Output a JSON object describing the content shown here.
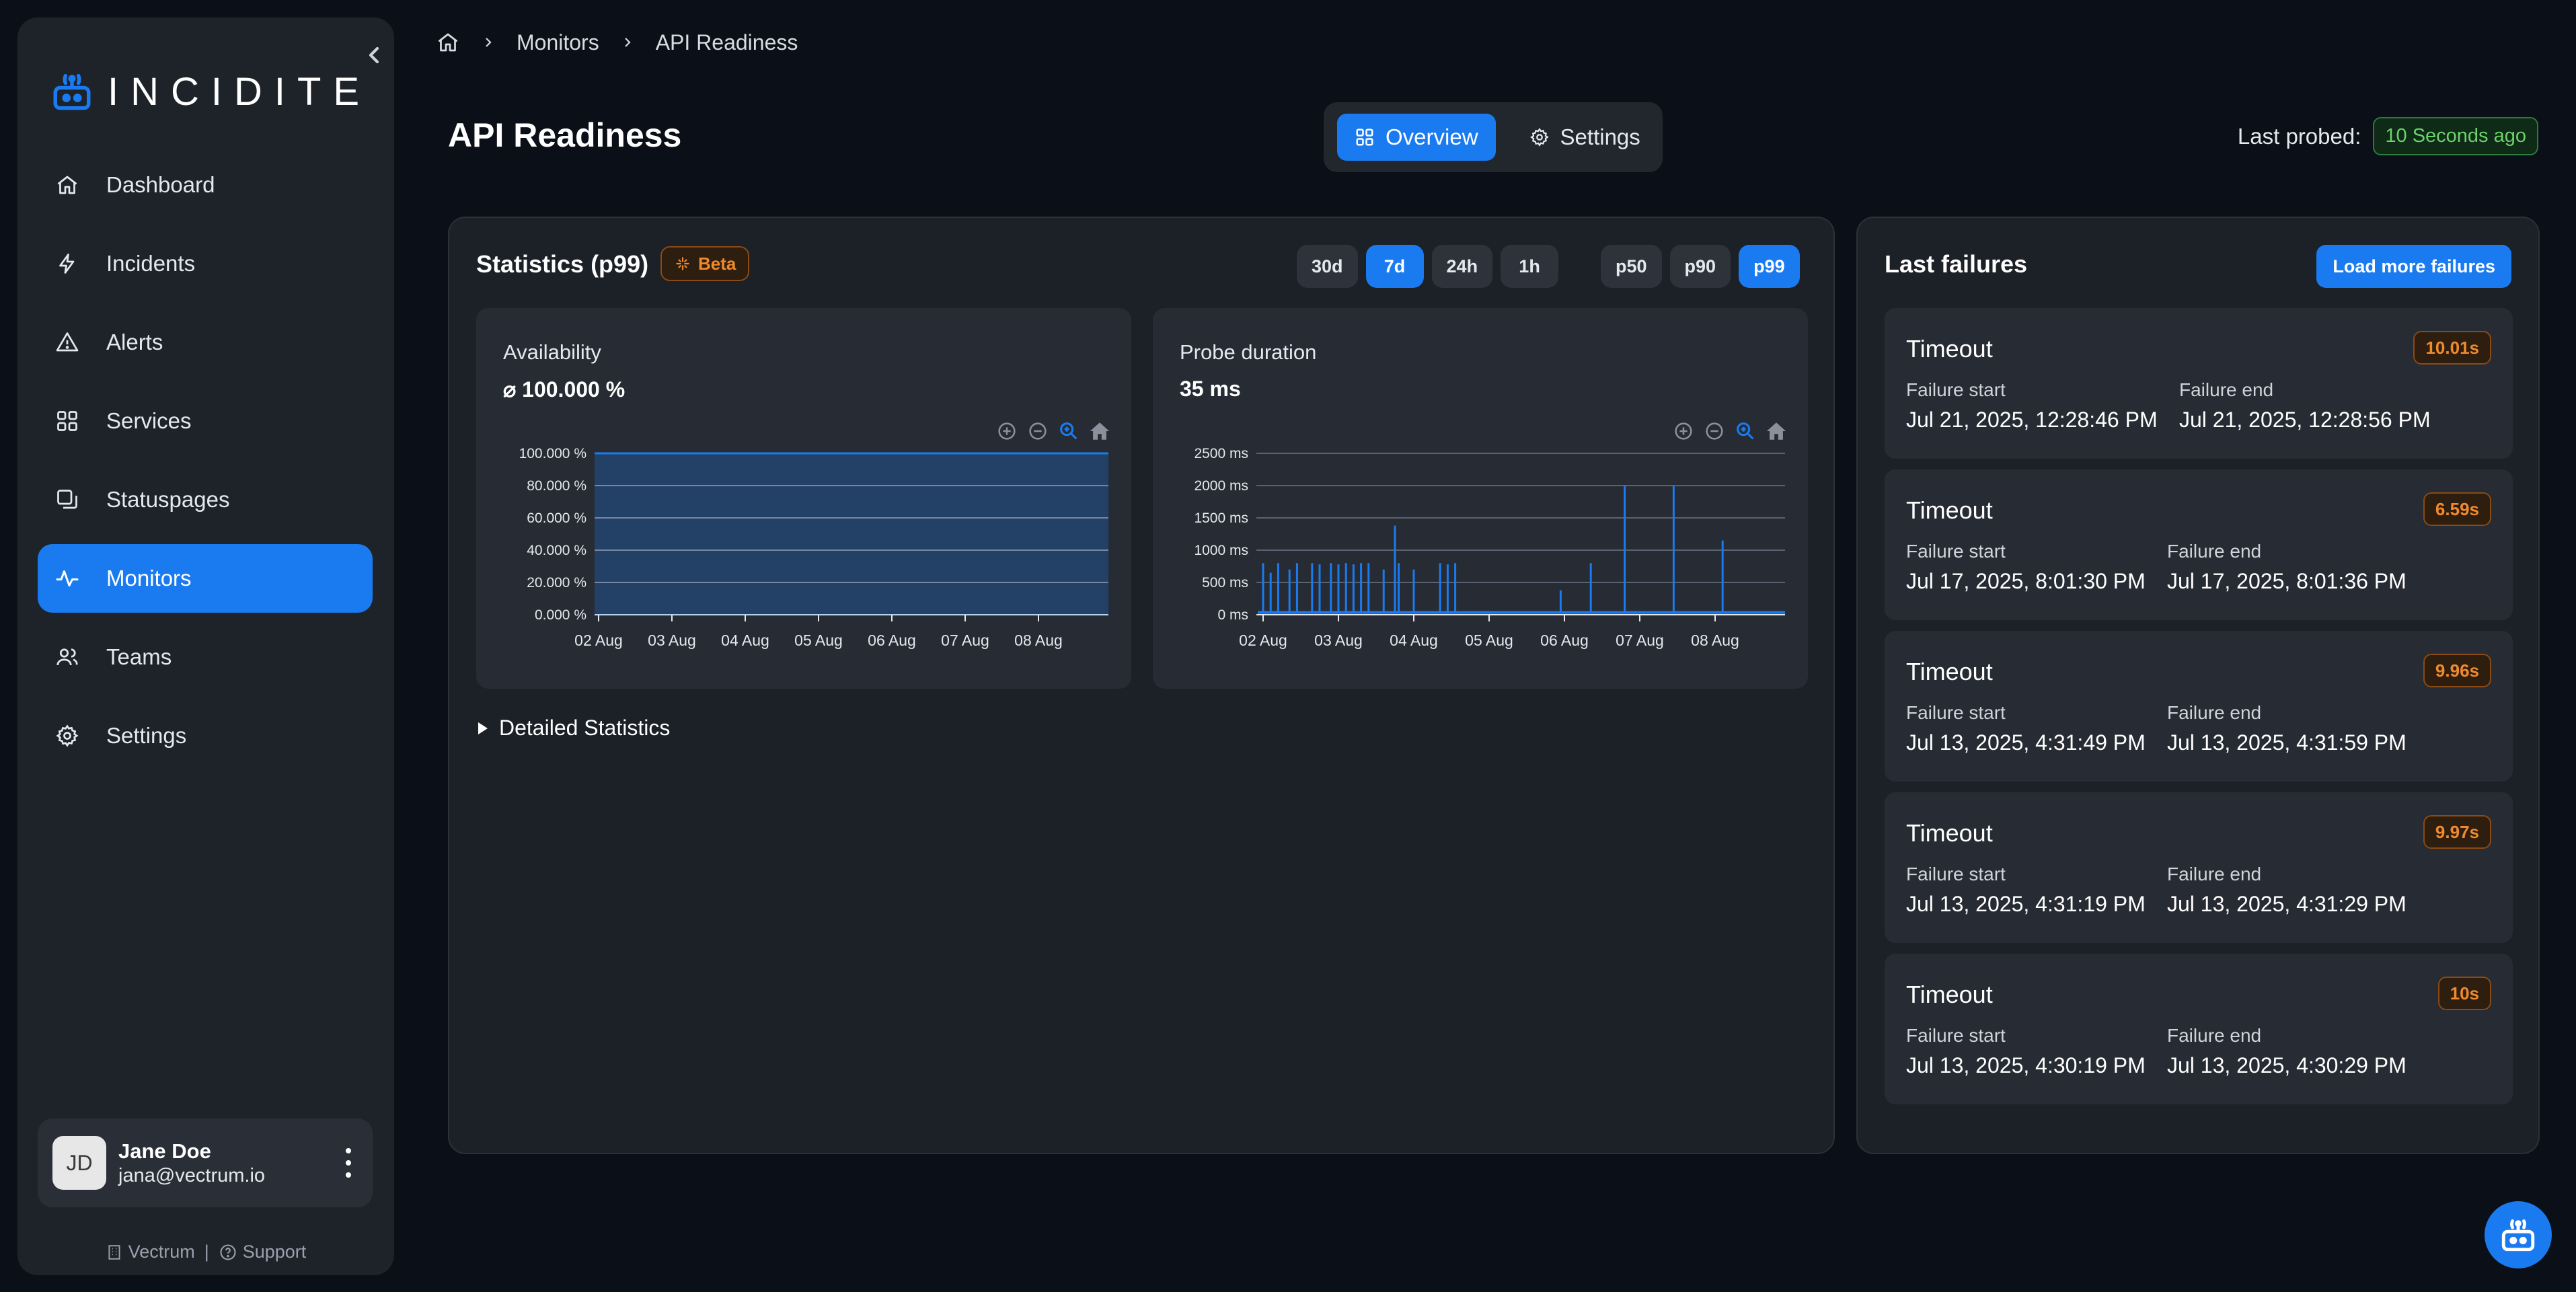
{
  "app": {
    "name": "INCIDITE"
  },
  "sidebar": {
    "items": [
      {
        "label": "Dashboard",
        "icon": "home-icon"
      },
      {
        "label": "Incidents",
        "icon": "bolt-icon"
      },
      {
        "label": "Alerts",
        "icon": "alert-triangle-icon"
      },
      {
        "label": "Services",
        "icon": "grid-icon"
      },
      {
        "label": "Statuspages",
        "icon": "pages-icon"
      },
      {
        "label": "Monitors",
        "icon": "pulse-icon",
        "active": true
      },
      {
        "label": "Teams",
        "icon": "users-icon"
      },
      {
        "label": "Settings",
        "icon": "gear-icon"
      }
    ],
    "user": {
      "initials": "JD",
      "name": "Jane Doe",
      "email": "jana@vectrum.io"
    },
    "footer": {
      "org": "Vectrum",
      "separator": "|",
      "support": "Support"
    }
  },
  "breadcrumb": {
    "items": [
      "Monitors",
      "API Readiness"
    ]
  },
  "page": {
    "title": "API Readiness"
  },
  "tabs": {
    "overview": "Overview",
    "settings": "Settings",
    "active": "Overview"
  },
  "probe": {
    "label": "Last probed:",
    "value": "10 Seconds ago"
  },
  "statistics": {
    "title": "Statistics (p99)",
    "beta": "Beta",
    "ranges": [
      "30d",
      "7d",
      "24h",
      "1h"
    ],
    "active_range": "7d",
    "percentiles": [
      "p50",
      "p90",
      "p99"
    ],
    "active_percentile": "p99",
    "details_label": "Detailed Statistics"
  },
  "availability": {
    "title": "Availability",
    "value": "⌀ 100.000 %"
  },
  "probe_duration": {
    "title": "Probe duration",
    "value": "35 ms"
  },
  "chart_data": [
    {
      "type": "area",
      "title": "Availability",
      "xlabel": "",
      "ylabel": "",
      "x": [
        "02 Aug",
        "03 Aug",
        "04 Aug",
        "05 Aug",
        "06 Aug",
        "07 Aug",
        "08 Aug"
      ],
      "ylim": [
        0,
        100
      ],
      "yticks": [
        "0.000 %",
        "20.000 %",
        "40.000 %",
        "60.000 %",
        "80.000 %",
        "100.000 %"
      ],
      "values": [
        100,
        100,
        100,
        100,
        100,
        100,
        100
      ],
      "grid": true,
      "color": "#1a7bf0"
    },
    {
      "type": "line",
      "title": "Probe duration",
      "xlabel": "",
      "ylabel": "",
      "x": [
        "02 Aug",
        "03 Aug",
        "04 Aug",
        "05 Aug",
        "06 Aug",
        "07 Aug",
        "08 Aug"
      ],
      "ylim": [
        0,
        2500
      ],
      "yticks": [
        "0 ms",
        "500 ms",
        "1000 ms",
        "1500 ms",
        "2000 ms",
        "2500 ms"
      ],
      "baseline_ms": 35,
      "spikes": [
        {
          "day": 0.0,
          "value": 800
        },
        {
          "day": 0.1,
          "value": 650
        },
        {
          "day": 0.2,
          "value": 800
        },
        {
          "day": 0.35,
          "value": 700
        },
        {
          "day": 0.45,
          "value": 800
        },
        {
          "day": 0.65,
          "value": 800
        },
        {
          "day": 0.75,
          "value": 780
        },
        {
          "day": 0.9,
          "value": 800
        },
        {
          "day": 1.0,
          "value": 780
        },
        {
          "day": 1.1,
          "value": 800
        },
        {
          "day": 1.2,
          "value": 780
        },
        {
          "day": 1.3,
          "value": 800
        },
        {
          "day": 1.4,
          "value": 800
        },
        {
          "day": 1.6,
          "value": 700
        },
        {
          "day": 1.75,
          "value": 1380
        },
        {
          "day": 1.8,
          "value": 800
        },
        {
          "day": 2.0,
          "value": 700
        },
        {
          "day": 2.35,
          "value": 800
        },
        {
          "day": 2.45,
          "value": 780
        },
        {
          "day": 2.55,
          "value": 800
        },
        {
          "day": 3.95,
          "value": 380
        },
        {
          "day": 4.35,
          "value": 800
        },
        {
          "day": 4.8,
          "value": 2000
        },
        {
          "day": 5.45,
          "value": 2000
        },
        {
          "day": 6.1,
          "value": 1150
        }
      ],
      "grid": true,
      "color": "#1a7bf0"
    }
  ],
  "failures": {
    "title": "Last failures",
    "load_more": "Load more failures",
    "start_label": "Failure start",
    "end_label": "Failure end",
    "items": [
      {
        "type": "Timeout",
        "duration": "10.01s",
        "start": "Jul 21, 2025, 12:28:46 PM",
        "end": "Jul 21, 2025, 12:28:56 PM"
      },
      {
        "type": "Timeout",
        "duration": "6.59s",
        "start": "Jul 17, 2025, 8:01:30 PM",
        "end": "Jul 17, 2025, 8:01:36 PM"
      },
      {
        "type": "Timeout",
        "duration": "9.96s",
        "start": "Jul 13, 2025, 4:31:49 PM",
        "end": "Jul 13, 2025, 4:31:59 PM"
      },
      {
        "type": "Timeout",
        "duration": "9.97s",
        "start": "Jul 13, 2025, 4:31:19 PM",
        "end": "Jul 13, 2025, 4:31:29 PM"
      },
      {
        "type": "Timeout",
        "duration": "10s",
        "start": "Jul 13, 2025, 4:30:19 PM",
        "end": "Jul 13, 2025, 4:30:29 PM"
      }
    ]
  },
  "colors": {
    "accent": "#1a7bf0",
    "success": "#6bd36b",
    "warning": "#f08a2c",
    "panel": "#1c2027",
    "background": "#0b0f17"
  }
}
